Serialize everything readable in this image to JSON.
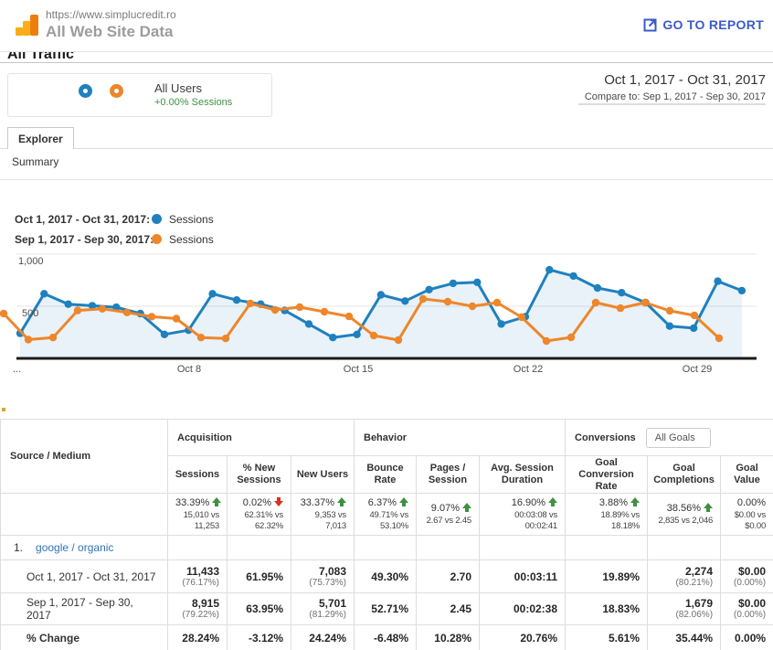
{
  "colors": {
    "blue": "#1f80bf",
    "orange": "#ee862b",
    "green": "#3d9140",
    "red": "#d93025",
    "link": "#3374b6",
    "accent": "#3b5bc7",
    "logo_light": "#FBAD18",
    "logo_dark": "#EF7D0C"
  },
  "topbar": {
    "url": "https://www.simplucredit.ro",
    "title": "All Web Site Data",
    "go_to_report": "GO TO REPORT"
  },
  "page": {
    "section_title": "All Traffic"
  },
  "segment": {
    "label": "All Users",
    "delta": "+0.00% Sessions"
  },
  "dates": {
    "primary": "Oct 1, 2017 - Oct 31, 2017",
    "compare": "Compare to: Sep 1, 2017 - Sep 30, 2017"
  },
  "tabs": {
    "explorer": "Explorer",
    "summary": "Summary"
  },
  "legend": [
    {
      "label": "Oct 1, 2017 - Oct 31, 2017:",
      "series": "Sessions",
      "color": "#1f80bf"
    },
    {
      "label": "Sep 1, 2017 - Sep 30, 2017:",
      "series": "Sessions",
      "color": "#ee862b"
    }
  ],
  "chart_data": {
    "type": "line",
    "title": "Sessions: Oct 1, 2017 - Oct 31, 2017 vs Sep 1, 2017 - Sep 30, 2017",
    "ylabel": "Sessions",
    "ylim": [
      0,
      1090
    ],
    "grid": true,
    "legend_position": "top-left",
    "y_ticks": [
      {
        "label": "1,000",
        "value": 1000
      },
      {
        "label": "500",
        "value": 500
      }
    ],
    "x_tick_labels": [
      "...",
      "Oct 8",
      "Oct 15",
      "Oct 22",
      "Oct 29"
    ],
    "series": [
      {
        "name": "Sessions",
        "period": "Oct 1, 2017 - Oct 31, 2017",
        "color": "#1f80bf",
        "area": true,
        "values": [
          240,
          620,
          520,
          505,
          490,
          430,
          230,
          270,
          620,
          560,
          520,
          460,
          330,
          200,
          230,
          610,
          550,
          660,
          720,
          730,
          330,
          400,
          850,
          790,
          675,
          630,
          535,
          310,
          290,
          740,
          650
        ]
      },
      {
        "name": "Sessions",
        "period": "Sep 1, 2017 - Sep 30, 2017",
        "color": "#ee862b",
        "area": false,
        "values": [
          430,
          180,
          200,
          460,
          475,
          440,
          400,
          382,
          200,
          191,
          527,
          465,
          491,
          447,
          403,
          219,
          175,
          570,
          544,
          500,
          535,
          395,
          167,
          202,
          535,
          482,
          535,
          456,
          412,
          193
        ]
      }
    ]
  },
  "table": {
    "dimension": "Source / Medium",
    "groups": {
      "acquisition": "Acquisition",
      "behavior": "Behavior",
      "conversions": "Conversions",
      "goal_selector": "All Goals"
    },
    "columns": [
      "Sessions",
      "% New Sessions",
      "New Users",
      "Bounce Rate",
      "Pages / Session",
      "Avg. Session Duration",
      "Goal Conversion Rate",
      "Goal Completions",
      "Goal Value"
    ],
    "totals": [
      {
        "pct": "33.39%",
        "dir": "up",
        "arrow_color": "#3d9140",
        "vs": "15,010 vs 11,253"
      },
      {
        "pct": "0.02%",
        "dir": "down",
        "arrow_color": "#d93025",
        "vs": "62.31% vs 62.32%"
      },
      {
        "pct": "33.37%",
        "dir": "up",
        "arrow_color": "#3d9140",
        "vs": "9,353 vs 7,013"
      },
      {
        "pct": "6.37%",
        "dir": "up",
        "arrow_color": "#3d9140",
        "vs": "49.71% vs 53.10%"
      },
      {
        "pct": "9.07%",
        "dir": "up",
        "arrow_color": "#3d9140",
        "vs": "2.67 vs 2.45"
      },
      {
        "pct": "16.90%",
        "dir": "up",
        "arrow_color": "#3d9140",
        "vs": "00:03:08 vs 00:02:41"
      },
      {
        "pct": "3.88%",
        "dir": "up",
        "arrow_color": "#3d9140",
        "vs": "18.89% vs 18.18%"
      },
      {
        "pct": "38.56%",
        "dir": "up",
        "arrow_color": "#3d9140",
        "vs": "2,835 vs 2,046"
      },
      {
        "pct": "0.00%",
        "dir": "none",
        "arrow_color": "",
        "vs": "$0.00 vs $0.00"
      }
    ],
    "row": {
      "index": "1.",
      "name": "google / organic",
      "periods": [
        {
          "label": "Oct 1, 2017 - Oct 31, 2017",
          "values": [
            "11,433",
            "61.95%",
            "7,083",
            "49.30%",
            "2.70",
            "00:03:11",
            "19.89%",
            "2,274",
            "$0.00"
          ],
          "subs": [
            "(76.17%)",
            "",
            "(75.73%)",
            "",
            "",
            "",
            "",
            "(80.21%)",
            "(0.00%)"
          ]
        },
        {
          "label": "Sep 1, 2017 - Sep 30, 2017",
          "values": [
            "8,915",
            "63.95%",
            "5,701",
            "52.71%",
            "2.45",
            "00:02:38",
            "18.83%",
            "1,679",
            "$0.00"
          ],
          "subs": [
            "(79.22%)",
            "",
            "(81.29%)",
            "",
            "",
            "",
            "",
            "(82.06%)",
            "(0.00%)"
          ]
        },
        {
          "label": "% Change",
          "values": [
            "28.24%",
            "-3.12%",
            "24.24%",
            "-6.48%",
            "10.28%",
            "20.76%",
            "5.61%",
            "35.44%",
            "0.00%"
          ],
          "subs": [
            "",
            "",
            "",
            "",
            "",
            "",
            "",
            "",
            ""
          ]
        }
      ]
    }
  }
}
